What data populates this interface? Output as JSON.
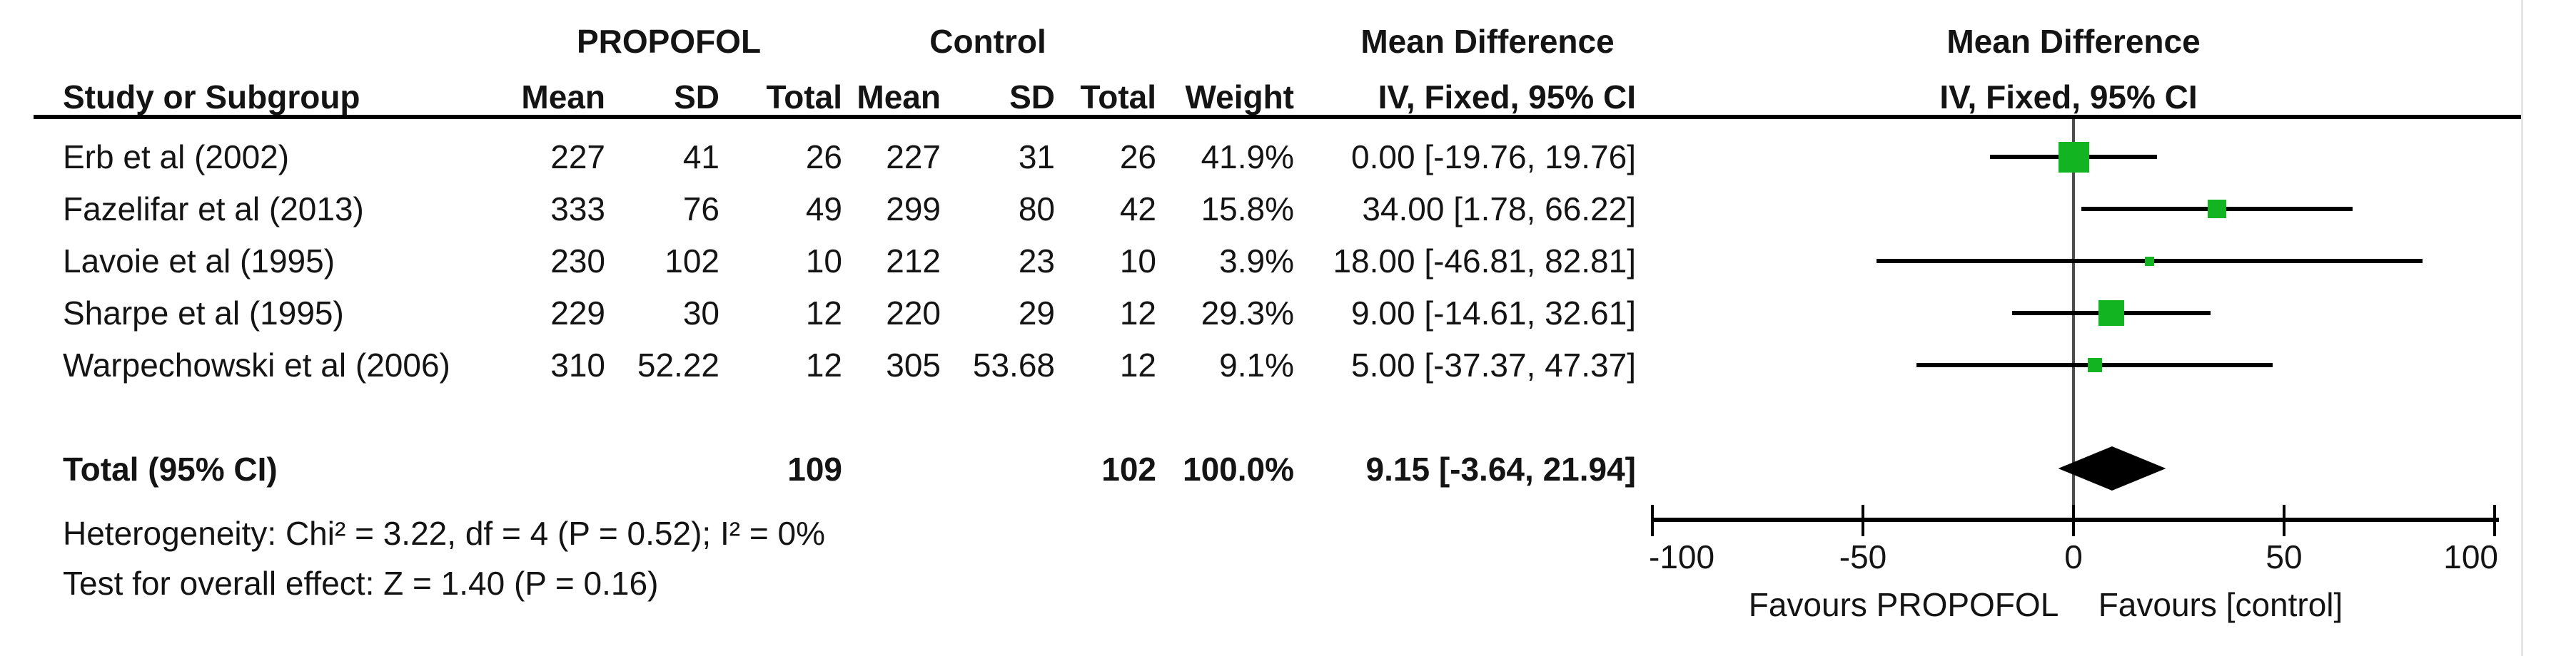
{
  "table": {
    "group_headers": {
      "experimental": "PROPOFOL",
      "control": "Control",
      "md_table": "Mean Difference",
      "md_plot": "Mean Difference"
    },
    "col_headers": {
      "study": "Study or Subgroup",
      "mean1": "Mean",
      "sd1": "SD",
      "total1": "Total",
      "mean2": "Mean",
      "sd2": "SD",
      "total2": "Total",
      "weight": "Weight",
      "iv_table": "IV, Fixed, 95% CI",
      "iv_plot": "IV, Fixed, 95% CI"
    },
    "rows": [
      {
        "study": "Erb et al (2002)",
        "e_mean": "227",
        "e_sd": "41",
        "e_total": "26",
        "c_mean": "227",
        "c_sd": "31",
        "c_total": "26",
        "weight": "41.9%",
        "ci_text": "0.00 [-19.76, 19.76]"
      },
      {
        "study": "Fazelifar et al (2013)",
        "e_mean": "333",
        "e_sd": "76",
        "e_total": "49",
        "c_mean": "299",
        "c_sd": "80",
        "c_total": "42",
        "weight": "15.8%",
        "ci_text": "34.00 [1.78, 66.22]"
      },
      {
        "study": "Lavoie et al (1995)",
        "e_mean": "230",
        "e_sd": "102",
        "e_total": "10",
        "c_mean": "212",
        "c_sd": "23",
        "c_total": "10",
        "weight": "3.9%",
        "ci_text": "18.00 [-46.81, 82.81]"
      },
      {
        "study": "Sharpe et al (1995)",
        "e_mean": "229",
        "e_sd": "30",
        "e_total": "12",
        "c_mean": "220",
        "c_sd": "29",
        "c_total": "12",
        "weight": "29.3%",
        "ci_text": "9.00 [-14.61, 32.61]"
      },
      {
        "study": "Warpechowski et al (2006)",
        "e_mean": "310",
        "e_sd": "52.22",
        "e_total": "12",
        "c_mean": "305",
        "c_sd": "53.68",
        "c_total": "12",
        "weight": "9.1%",
        "ci_text": "5.00 [-37.37, 47.37]"
      }
    ],
    "total_row": {
      "label": "Total (95% CI)",
      "e_total": "109",
      "c_total": "102",
      "weight": "100.0%",
      "ci_text": "9.15 [-3.64, 21.94]"
    },
    "footer": {
      "heterogeneity": "Heterogeneity: Chi² = 3.22, df = 4 (P = 0.52); I² = 0%",
      "overall_effect": "Test for overall effect: Z = 1.40 (P = 0.16)"
    }
  },
  "chart_data": {
    "type": "scatter",
    "variant": "forest_plot",
    "title": "Mean Difference IV, Fixed, 95% CI",
    "xlim": [
      -100,
      100
    ],
    "xticks": [
      -100,
      -50,
      0,
      50,
      100
    ],
    "xtick_labels": [
      "-100",
      "-50",
      "0",
      "50",
      "100"
    ],
    "xlabel_left": "Favours PROPOFOL",
    "xlabel_right": "Favours [control]",
    "grid": false,
    "studies": [
      {
        "name": "Erb et al (2002)",
        "md": 0.0,
        "ci": [
          -19.76,
          19.76
        ],
        "weight_pct": 41.9
      },
      {
        "name": "Fazelifar et al (2013)",
        "md": 34.0,
        "ci": [
          1.78,
          66.22
        ],
        "weight_pct": 15.8
      },
      {
        "name": "Lavoie et al (1995)",
        "md": 18.0,
        "ci": [
          -46.81,
          82.81
        ],
        "weight_pct": 3.9
      },
      {
        "name": "Sharpe et al (1995)",
        "md": 9.0,
        "ci": [
          -14.61,
          32.61
        ],
        "weight_pct": 29.3
      },
      {
        "name": "Warpechowski et al (2006)",
        "md": 5.0,
        "ci": [
          -37.37,
          47.37
        ],
        "weight_pct": 9.1
      }
    ],
    "overall": {
      "name": "Total (95% CI)",
      "md": 9.15,
      "ci": [
        -3.64,
        21.94
      ],
      "weight_pct": 100.0
    }
  },
  "colors": {
    "square_green": "#12b422",
    "diamond_black": "#000000",
    "ci_line": "#000000",
    "zero_line": "#4d4d4d",
    "text": "#141414"
  }
}
